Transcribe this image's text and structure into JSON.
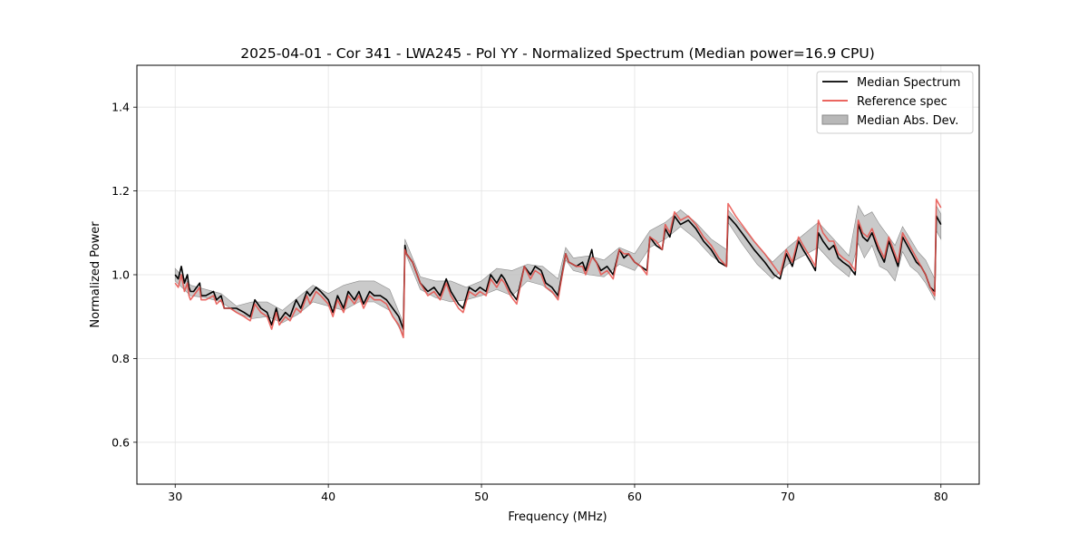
{
  "chart_data": {
    "type": "line",
    "title": "2025-04-01 - Cor 341 - LWA245 - Pol YY - Normalized Spectrum (Median power=16.9 CPU)",
    "xlabel": "Frequency (MHz)",
    "ylabel": "Normalized Power",
    "xlim": [
      27.5,
      82.5
    ],
    "ylim": [
      0.5,
      1.5
    ],
    "xticks": [
      30,
      40,
      50,
      60,
      70,
      80
    ],
    "yticks": [
      0.6,
      0.8,
      1.0,
      1.2,
      1.4
    ],
    "xtick_labels": [
      "30",
      "40",
      "50",
      "60",
      "70",
      "80"
    ],
    "ytick_labels": [
      "0.6",
      "0.8",
      "1.0",
      "1.2",
      "1.4"
    ],
    "grid": true,
    "legend_position": "top-right",
    "colors": {
      "median": "#000000",
      "reference": "#e8504a",
      "mad_fill": "#b8b8b8",
      "mad_edge": "#8a8a8a"
    },
    "series": [
      {
        "name": "Median Spectrum",
        "kind": "line",
        "x": [
          30.0,
          30.2,
          30.4,
          30.6,
          30.8,
          30.9,
          31.0,
          31.2,
          31.6,
          31.7,
          32.0,
          32.5,
          32.7,
          33.0,
          33.2,
          33.6,
          34.0,
          34.5,
          34.9,
          35.2,
          35.6,
          36.0,
          36.3,
          36.6,
          36.8,
          37.2,
          37.5,
          37.9,
          38.2,
          38.6,
          38.8,
          39.2,
          39.5,
          40.0,
          40.3,
          40.6,
          41.0,
          41.3,
          41.7,
          42.0,
          42.3,
          42.7,
          43.0,
          43.4,
          43.8,
          44.2,
          44.6,
          44.9,
          45.0,
          45.1,
          45.5,
          46.0,
          46.5,
          46.9,
          47.3,
          47.7,
          48.0,
          48.5,
          48.8,
          49.2,
          49.6,
          49.9,
          50.3,
          50.6,
          51.0,
          51.3,
          51.5,
          51.9,
          52.3,
          52.8,
          53.2,
          53.5,
          53.9,
          54.2,
          54.6,
          55.0,
          55.5,
          55.7,
          56.2,
          56.6,
          56.8,
          57.2,
          57.3,
          57.5,
          57.8,
          58.2,
          58.6,
          59.0,
          59.3,
          59.6,
          60.0,
          60.4,
          60.8,
          61.0,
          61.4,
          61.8,
          62.0,
          62.3,
          62.6,
          63.0,
          63.5,
          64.0,
          64.5,
          65.0,
          65.5,
          66.0,
          66.1,
          66.6,
          67.2,
          67.8,
          68.5,
          69.1,
          69.5,
          69.9,
          70.3,
          70.7,
          71.0,
          71.5,
          71.8,
          72.0,
          72.3,
          72.7,
          73.0,
          73.3,
          73.6,
          74.0,
          74.4,
          74.6,
          74.9,
          75.2,
          75.5,
          75.9,
          76.3,
          76.6,
          76.9,
          77.2,
          77.5,
          77.8,
          78.1,
          78.4,
          78.7,
          79.0,
          79.3,
          79.6,
          79.7,
          80.0
        ],
        "y": [
          1.0,
          0.99,
          1.02,
          0.98,
          1.0,
          0.97,
          0.96,
          0.96,
          0.98,
          0.95,
          0.95,
          0.96,
          0.94,
          0.95,
          0.92,
          0.92,
          0.92,
          0.91,
          0.9,
          0.94,
          0.92,
          0.91,
          0.88,
          0.92,
          0.89,
          0.91,
          0.9,
          0.94,
          0.92,
          0.96,
          0.95,
          0.97,
          0.96,
          0.94,
          0.91,
          0.95,
          0.92,
          0.96,
          0.94,
          0.96,
          0.93,
          0.96,
          0.95,
          0.95,
          0.94,
          0.92,
          0.9,
          0.87,
          1.07,
          1.05,
          1.03,
          0.98,
          0.96,
          0.97,
          0.95,
          0.99,
          0.96,
          0.93,
          0.92,
          0.97,
          0.96,
          0.97,
          0.96,
          1.0,
          0.98,
          1.0,
          0.99,
          0.96,
          0.94,
          1.02,
          1.0,
          1.02,
          1.01,
          0.98,
          0.97,
          0.95,
          1.05,
          1.03,
          1.02,
          1.03,
          1.01,
          1.06,
          1.04,
          1.03,
          1.01,
          1.02,
          1.0,
          1.06,
          1.04,
          1.05,
          1.03,
          1.02,
          1.01,
          1.09,
          1.07,
          1.06,
          1.11,
          1.09,
          1.14,
          1.12,
          1.13,
          1.11,
          1.08,
          1.06,
          1.03,
          1.02,
          1.14,
          1.12,
          1.09,
          1.06,
          1.03,
          1.0,
          0.99,
          1.05,
          1.02,
          1.08,
          1.06,
          1.03,
          1.01,
          1.1,
          1.08,
          1.06,
          1.07,
          1.04,
          1.03,
          1.02,
          1.0,
          1.12,
          1.09,
          1.08,
          1.1,
          1.06,
          1.03,
          1.08,
          1.05,
          1.02,
          1.09,
          1.07,
          1.05,
          1.03,
          1.02,
          1.0,
          0.97,
          0.96,
          1.14,
          1.12
        ]
      },
      {
        "name": "Reference spec",
        "kind": "line",
        "x": [
          30.0,
          30.2,
          30.4,
          30.6,
          30.8,
          30.9,
          31.0,
          31.2,
          31.6,
          31.7,
          32.0,
          32.5,
          32.7,
          33.0,
          33.2,
          33.6,
          34.0,
          34.5,
          34.9,
          35.2,
          35.6,
          36.0,
          36.3,
          36.6,
          36.8,
          37.2,
          37.5,
          37.9,
          38.2,
          38.6,
          38.8,
          39.2,
          39.5,
          40.0,
          40.3,
          40.6,
          41.0,
          41.3,
          41.7,
          42.0,
          42.3,
          42.7,
          43.0,
          43.4,
          43.8,
          44.2,
          44.6,
          44.9,
          45.0,
          45.1,
          45.5,
          46.0,
          46.5,
          46.9,
          47.3,
          47.7,
          48.0,
          48.5,
          48.8,
          49.2,
          49.6,
          49.9,
          50.3,
          50.6,
          51.0,
          51.3,
          51.5,
          51.9,
          52.3,
          52.8,
          53.2,
          53.5,
          53.9,
          54.2,
          54.6,
          55.0,
          55.5,
          55.7,
          56.2,
          56.6,
          56.8,
          57.2,
          57.3,
          57.5,
          57.8,
          58.2,
          58.6,
          59.0,
          59.3,
          59.6,
          60.0,
          60.4,
          60.8,
          61.0,
          61.4,
          61.8,
          62.0,
          62.3,
          62.6,
          63.0,
          63.5,
          64.0,
          64.5,
          65.0,
          65.5,
          66.0,
          66.1,
          66.6,
          67.2,
          67.8,
          68.5,
          69.1,
          69.5,
          69.9,
          70.3,
          70.7,
          71.0,
          71.5,
          71.8,
          72.0,
          72.3,
          72.7,
          73.0,
          73.3,
          73.6,
          74.0,
          74.4,
          74.6,
          74.9,
          75.2,
          75.5,
          75.9,
          76.3,
          76.6,
          76.9,
          77.2,
          77.5,
          77.8,
          78.1,
          78.4,
          78.7,
          79.0,
          79.3,
          79.6,
          79.7,
          80.0
        ],
        "y": [
          0.98,
          0.97,
          1.0,
          0.96,
          0.98,
          0.95,
          0.94,
          0.95,
          0.97,
          0.94,
          0.94,
          0.95,
          0.93,
          0.94,
          0.92,
          0.92,
          0.91,
          0.9,
          0.89,
          0.93,
          0.91,
          0.9,
          0.87,
          0.91,
          0.88,
          0.9,
          0.89,
          0.92,
          0.91,
          0.95,
          0.93,
          0.96,
          0.95,
          0.93,
          0.9,
          0.94,
          0.91,
          0.95,
          0.93,
          0.95,
          0.92,
          0.95,
          0.94,
          0.94,
          0.93,
          0.9,
          0.88,
          0.85,
          1.06,
          1.05,
          1.03,
          0.98,
          0.95,
          0.96,
          0.94,
          0.98,
          0.95,
          0.92,
          0.91,
          0.96,
          0.95,
          0.96,
          0.95,
          0.99,
          0.97,
          0.99,
          0.98,
          0.95,
          0.93,
          1.02,
          0.99,
          1.01,
          1.0,
          0.97,
          0.96,
          0.94,
          1.05,
          1.03,
          1.02,
          1.02,
          1.0,
          1.04,
          1.04,
          1.03,
          1.0,
          1.01,
          0.99,
          1.06,
          1.05,
          1.05,
          1.03,
          1.02,
          1.0,
          1.09,
          1.08,
          1.06,
          1.12,
          1.1,
          1.15,
          1.13,
          1.14,
          1.12,
          1.09,
          1.07,
          1.04,
          1.02,
          1.17,
          1.14,
          1.11,
          1.08,
          1.05,
          1.02,
          1.0,
          1.06,
          1.03,
          1.09,
          1.07,
          1.04,
          1.02,
          1.13,
          1.1,
          1.08,
          1.08,
          1.05,
          1.04,
          1.03,
          1.01,
          1.13,
          1.1,
          1.09,
          1.11,
          1.07,
          1.04,
          1.09,
          1.06,
          1.03,
          1.1,
          1.08,
          1.06,
          1.04,
          1.02,
          1.0,
          0.97,
          0.95,
          1.18,
          1.16
        ]
      },
      {
        "name": "Median Abs. Dev.",
        "kind": "band",
        "x": [
          30.0,
          31.0,
          32.0,
          33.0,
          34.0,
          35.0,
          36.0,
          37.0,
          38.0,
          39.0,
          40.0,
          41.0,
          42.0,
          43.0,
          44.0,
          44.9,
          45.0,
          46.0,
          47.0,
          48.0,
          49.0,
          50.0,
          51.0,
          52.0,
          53.0,
          54.0,
          55.0,
          55.5,
          56.0,
          57.0,
          58.0,
          59.0,
          60.0,
          61.0,
          62.0,
          63.0,
          64.0,
          65.0,
          66.0,
          66.1,
          67.0,
          68.0,
          69.0,
          70.0,
          71.0,
          72.0,
          73.0,
          74.0,
          74.6,
          75.0,
          75.5,
          76.0,
          76.5,
          77.0,
          77.5,
          78.0,
          78.5,
          79.0,
          79.6,
          79.7,
          80.0
        ],
        "lower": [
          0.985,
          0.95,
          0.945,
          0.935,
          0.91,
          0.895,
          0.9,
          0.885,
          0.905,
          0.935,
          0.925,
          0.915,
          0.935,
          0.935,
          0.915,
          0.855,
          1.055,
          0.965,
          0.945,
          0.935,
          0.94,
          0.95,
          0.965,
          0.95,
          0.985,
          0.975,
          0.945,
          1.035,
          1.01,
          1.0,
          0.995,
          1.025,
          1.01,
          1.065,
          1.085,
          1.115,
          1.085,
          1.045,
          1.02,
          1.125,
          1.075,
          1.025,
          0.99,
          1.025,
          1.045,
          1.065,
          1.025,
          0.995,
          1.075,
          1.04,
          1.07,
          1.02,
          1.01,
          0.985,
          1.055,
          1.02,
          1.005,
          0.98,
          0.94,
          1.105,
          1.085
        ],
        "upper": [
          1.015,
          0.975,
          0.965,
          0.955,
          0.925,
          0.935,
          0.935,
          0.915,
          0.945,
          0.975,
          0.955,
          0.975,
          0.985,
          0.985,
          0.965,
          0.885,
          1.085,
          0.995,
          0.985,
          0.985,
          0.97,
          0.985,
          1.015,
          1.01,
          1.025,
          1.02,
          0.99,
          1.065,
          1.04,
          1.045,
          1.035,
          1.065,
          1.05,
          1.105,
          1.125,
          1.155,
          1.125,
          1.085,
          1.06,
          1.155,
          1.115,
          1.07,
          1.03,
          1.065,
          1.095,
          1.125,
          1.085,
          1.045,
          1.165,
          1.14,
          1.15,
          1.12,
          1.095,
          1.07,
          1.115,
          1.085,
          1.055,
          1.035,
          0.99,
          1.165,
          1.145
        ]
      }
    ]
  }
}
